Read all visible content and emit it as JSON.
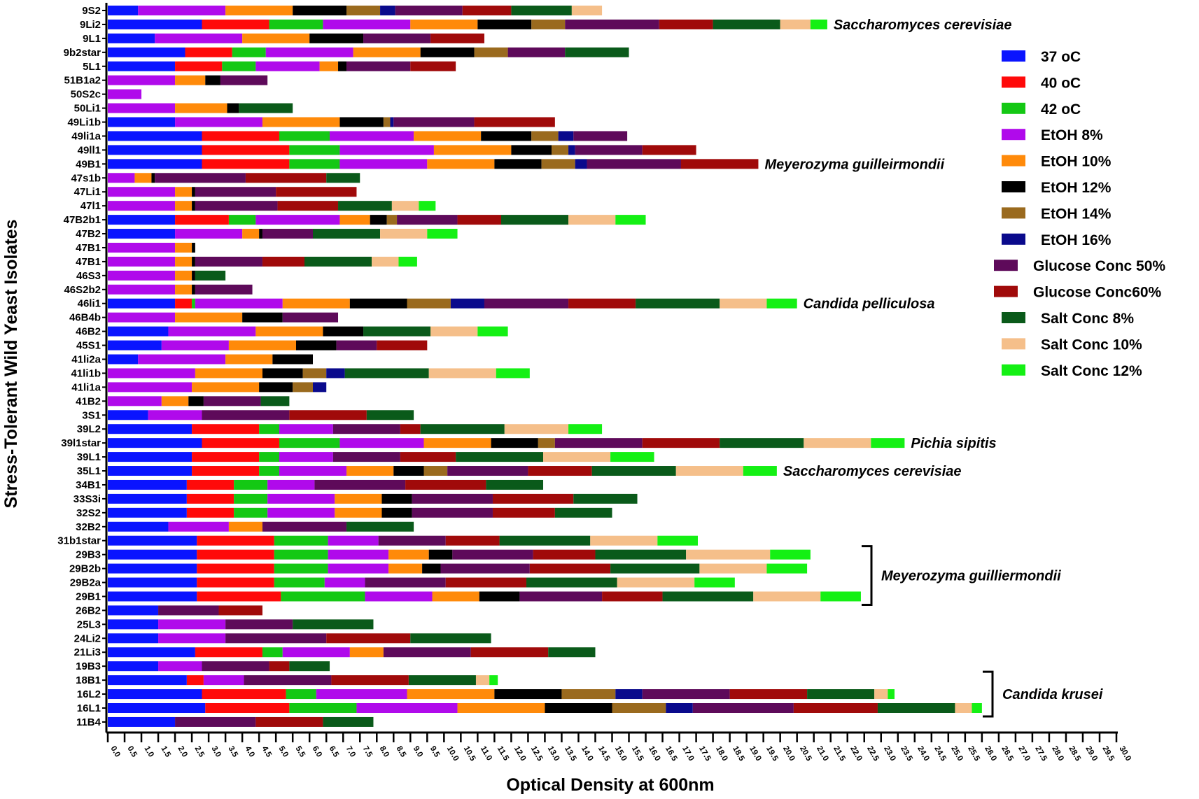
{
  "chart_data": {
    "type": "bar",
    "orientation": "horizontal",
    "stacked": true,
    "xlabel": "Optical Density at 600nm",
    "ylabel": "Stress-Tolerant Wild Yeast Isolates",
    "xlim": [
      0,
      30
    ],
    "xtick_step": 0.5,
    "grid": false,
    "legend_position": "right",
    "series": [
      {
        "name": "37 oC",
        "color": "#0a14ff"
      },
      {
        "name": "40 oC",
        "color": "#ff0a0a"
      },
      {
        "name": "42 oC",
        "color": "#14c814"
      },
      {
        "name": "EtOH 8%",
        "color": "#b00aeb"
      },
      {
        "name": "EtOH 10%",
        "color": "#ff8a0a"
      },
      {
        "name": "EtOH 12%",
        "color": "#000000"
      },
      {
        "name": "EtOH 14%",
        "color": "#9a6a1e"
      },
      {
        "name": "EtOH 16%",
        "color": "#0a0a8c"
      },
      {
        "name": "Glucose Conc 50%",
        "color": "#5e0a5a"
      },
      {
        "name": "Glucose Conc60%",
        "color": "#a00a0a"
      },
      {
        "name": "Salt Conc 8%",
        "color": "#0a5a1a"
      },
      {
        "name": "Salt Conc 10%",
        "color": "#f5bf8a"
      },
      {
        "name": "Salt Conc 12%",
        "color": "#14f014"
      }
    ],
    "rows": [
      {
        "label": "9S2",
        "values": [
          0.9,
          0,
          0,
          2.6,
          2.0,
          1.6,
          1.0,
          0.45,
          2.0,
          1.45,
          1.8,
          0.9,
          0
        ]
      },
      {
        "label": "9Li2",
        "values": [
          2.8,
          2.0,
          1.6,
          2.6,
          2.0,
          1.6,
          1.0,
          0,
          2.8,
          1.6,
          2.0,
          0.9,
          0.5
        ]
      },
      {
        "label": "9L1",
        "values": [
          1.4,
          0,
          0,
          2.6,
          2.0,
          1.6,
          0,
          0,
          2.0,
          1.6,
          0,
          0,
          0
        ]
      },
      {
        "label": "9b2star",
        "values": [
          2.3,
          1.4,
          1.0,
          2.6,
          2.0,
          1.6,
          1.0,
          0,
          1.7,
          0,
          1.9,
          0,
          0
        ]
      },
      {
        "label": "5L1",
        "values": [
          2.0,
          1.4,
          1.0,
          1.9,
          0.55,
          0.25,
          0,
          0,
          1.9,
          1.35,
          0,
          0,
          0
        ]
      },
      {
        "label": "51B1a2",
        "values": [
          0,
          0,
          0,
          2.0,
          0.9,
          0.45,
          0,
          0,
          1.4,
          0,
          0,
          0,
          0
        ]
      },
      {
        "label": "50S2c",
        "values": [
          0,
          0,
          0,
          1.0,
          0,
          0,
          0,
          0,
          0,
          0,
          0,
          0,
          0
        ]
      },
      {
        "label": "50Li1",
        "values": [
          0,
          0,
          0,
          2.0,
          1.55,
          0.35,
          0,
          0,
          0,
          0,
          1.6,
          0,
          0
        ]
      },
      {
        "label": "49Li1b",
        "values": [
          2.0,
          0,
          0,
          2.6,
          2.3,
          1.3,
          0.2,
          0.1,
          2.4,
          2.4,
          0,
          0,
          0
        ]
      },
      {
        "label": "49li1a",
        "values": [
          2.8,
          2.3,
          1.5,
          2.5,
          2.0,
          1.5,
          0.8,
          0.45,
          1.6,
          0,
          0,
          0,
          0
        ]
      },
      {
        "label": "49ll1",
        "values": [
          2.8,
          2.6,
          1.5,
          2.8,
          2.3,
          1.2,
          0.5,
          0.2,
          2.0,
          1.6,
          0,
          0,
          0
        ]
      },
      {
        "label": "49B1",
        "values": [
          2.8,
          2.6,
          1.5,
          2.6,
          2.0,
          1.4,
          1.0,
          0.35,
          2.8,
          2.3,
          0,
          0,
          0
        ]
      },
      {
        "label": "47s1b",
        "values": [
          0,
          0,
          0,
          0.8,
          0.5,
          0.1,
          0,
          0,
          2.7,
          2.4,
          1.0,
          0,
          0
        ]
      },
      {
        "label": "47Li1",
        "values": [
          0,
          0,
          0,
          2.0,
          0.5,
          0.1,
          0,
          0,
          2.4,
          2.4,
          0,
          0,
          0
        ]
      },
      {
        "label": "47l1",
        "values": [
          0,
          0,
          0,
          2.0,
          0.5,
          0.1,
          0,
          0,
          2.45,
          1.8,
          1.6,
          0.8,
          0.5
        ]
      },
      {
        "label": "47B2b1",
        "values": [
          2.0,
          1.6,
          0.8,
          2.5,
          0.9,
          0.5,
          0.3,
          0,
          1.8,
          1.3,
          2.0,
          1.4,
          0.9
        ]
      },
      {
        "label": "47B2",
        "values": [
          2.0,
          0,
          0,
          2.0,
          0.5,
          0.1,
          0,
          0,
          1.5,
          0,
          2.0,
          1.4,
          0.9
        ]
      },
      {
        "label": "47B1",
        "values": [
          0,
          0,
          0,
          2.0,
          0.5,
          0.1,
          0,
          0,
          0,
          0,
          0,
          0,
          0
        ]
      },
      {
        "label": "47B1",
        "values": [
          0,
          0,
          0,
          2.0,
          0.5,
          0.1,
          0,
          0,
          2.0,
          1.25,
          2.0,
          0.8,
          0.55
        ]
      },
      {
        "label": "46S3",
        "values": [
          0,
          0,
          0,
          2.0,
          0.5,
          0.1,
          0,
          0,
          0,
          0,
          0.9,
          0,
          0
        ]
      },
      {
        "label": "46S2b2",
        "values": [
          0,
          0,
          0,
          2.0,
          0.5,
          0.1,
          0,
          0,
          1.7,
          0,
          0,
          0,
          0
        ]
      },
      {
        "label": "46li1",
        "values": [
          2.0,
          0.5,
          0.1,
          2.6,
          2.0,
          1.7,
          1.3,
          1.0,
          2.5,
          2.0,
          2.5,
          1.4,
          0.9
        ]
      },
      {
        "label": "46B4b",
        "values": [
          0,
          0,
          0,
          2.0,
          2.0,
          1.2,
          0,
          0,
          1.65,
          0,
          0,
          0,
          0
        ]
      },
      {
        "label": "46B2",
        "values": [
          1.8,
          0,
          0,
          2.6,
          2.0,
          1.2,
          0,
          0,
          0,
          0,
          2.0,
          1.4,
          0.9
        ]
      },
      {
        "label": "45S1",
        "values": [
          1.6,
          0,
          0,
          2.0,
          2.0,
          1.2,
          0,
          0,
          1.2,
          1.5,
          0,
          0,
          0
        ]
      },
      {
        "label": "41li2a",
        "values": [
          0.9,
          0,
          0,
          2.6,
          1.4,
          1.2,
          0,
          0,
          0,
          0,
          0,
          0,
          0
        ]
      },
      {
        "label": "41li1b",
        "values": [
          0,
          0,
          0,
          2.6,
          2.0,
          1.2,
          0.7,
          0.55,
          0,
          0,
          2.5,
          2.0,
          1.0
        ]
      },
      {
        "label": "41li1a",
        "values": [
          0,
          0,
          0,
          2.5,
          2.0,
          1.0,
          0.6,
          0.4,
          0,
          0,
          0,
          0,
          0
        ]
      },
      {
        "label": "41B2",
        "values": [
          0,
          0,
          0,
          1.6,
          0.8,
          0.45,
          0,
          0,
          1.7,
          0,
          0.85,
          0,
          0
        ]
      },
      {
        "label": "3S1",
        "values": [
          1.2,
          0,
          0,
          1.6,
          0,
          0,
          0,
          0,
          2.6,
          2.3,
          1.4,
          0,
          0
        ]
      },
      {
        "label": "39L2",
        "values": [
          2.5,
          2.0,
          0.6,
          1.6,
          0,
          0,
          0,
          0,
          2.0,
          0.6,
          2.5,
          1.9,
          1.0
        ]
      },
      {
        "label": "39l1star",
        "values": [
          2.8,
          2.3,
          1.8,
          2.5,
          2.0,
          1.4,
          0.5,
          0,
          2.6,
          2.3,
          2.5,
          2.0,
          1.0
        ]
      },
      {
        "label": "39L1",
        "values": [
          2.5,
          2.0,
          0.6,
          1.6,
          0,
          0,
          0,
          0,
          2.0,
          1.65,
          2.6,
          2.0,
          1.3
        ]
      },
      {
        "label": "35L1",
        "values": [
          2.5,
          2.0,
          0.6,
          2.0,
          1.4,
          0.9,
          0.7,
          0,
          2.4,
          1.9,
          2.5,
          2.0,
          1.0
        ]
      },
      {
        "label": "34B1",
        "values": [
          2.35,
          1.4,
          1.0,
          1.4,
          0,
          0,
          0,
          0,
          2.7,
          2.4,
          1.7,
          0,
          0
        ]
      },
      {
        "label": "33S3i",
        "values": [
          2.35,
          1.4,
          1.0,
          2.0,
          1.4,
          0.9,
          0,
          0,
          2.4,
          2.4,
          1.9,
          0,
          0
        ]
      },
      {
        "label": "32S2",
        "values": [
          2.35,
          1.4,
          1.0,
          2.0,
          1.4,
          0.9,
          0,
          0,
          2.4,
          1.85,
          1.7,
          0,
          0
        ]
      },
      {
        "label": "32B2",
        "values": [
          1.8,
          0,
          0,
          1.8,
          1.0,
          0,
          0,
          0,
          2.5,
          0,
          2.0,
          0,
          0
        ]
      },
      {
        "label": "31b1star",
        "values": [
          2.65,
          2.3,
          1.6,
          1.5,
          0,
          0,
          0,
          0,
          2.0,
          1.6,
          2.7,
          2.0,
          1.2
        ]
      },
      {
        "label": "29B3",
        "values": [
          2.65,
          2.3,
          1.6,
          1.8,
          1.2,
          0.7,
          0,
          0,
          2.4,
          1.85,
          2.7,
          2.5,
          1.2
        ]
      },
      {
        "label": "29B2b",
        "values": [
          2.65,
          2.3,
          1.6,
          1.8,
          1.0,
          0.55,
          0,
          0,
          2.65,
          2.4,
          2.65,
          2.0,
          1.2
        ]
      },
      {
        "label": "29B2a",
        "values": [
          2.65,
          2.3,
          1.5,
          1.2,
          0,
          0,
          0,
          0,
          2.4,
          2.4,
          2.7,
          2.3,
          1.2
        ]
      },
      {
        "label": "29B1",
        "values": [
          2.65,
          2.5,
          2.5,
          2.0,
          1.4,
          1.2,
          0,
          0,
          2.45,
          1.8,
          2.7,
          2.0,
          1.2
        ]
      },
      {
        "label": "26B2",
        "values": [
          1.5,
          0,
          0,
          0,
          0,
          0,
          0,
          0,
          1.8,
          1.3,
          0,
          0,
          0
        ]
      },
      {
        "label": "25L3",
        "values": [
          1.5,
          0,
          0,
          2.0,
          0,
          0,
          0,
          0,
          2.0,
          0,
          2.4,
          0,
          0
        ]
      },
      {
        "label": "24Li2",
        "values": [
          1.5,
          0,
          0,
          2.0,
          0,
          0,
          0,
          0,
          3.0,
          2.5,
          2.4,
          0,
          0
        ]
      },
      {
        "label": "21Li3",
        "values": [
          2.6,
          2.0,
          0.6,
          2.0,
          1.0,
          0,
          0,
          0,
          2.6,
          2.3,
          1.4,
          0,
          0
        ]
      },
      {
        "label": "19B3",
        "values": [
          1.5,
          0,
          0,
          1.3,
          0,
          0,
          0,
          0,
          2.0,
          0.6,
          1.2,
          0,
          0
        ]
      },
      {
        "label": "18B1",
        "values": [
          2.35,
          0.5,
          0,
          1.2,
          0,
          0,
          0,
          0,
          2.6,
          2.3,
          2.0,
          0.4,
          0.25
        ]
      },
      {
        "label": "16L2",
        "values": [
          2.8,
          2.5,
          0.9,
          2.7,
          2.6,
          2.0,
          1.6,
          0.8,
          2.6,
          2.3,
          2.0,
          0.4,
          0.2
        ]
      },
      {
        "label": "16L1",
        "values": [
          2.9,
          2.5,
          2.0,
          3.0,
          2.6,
          2.0,
          1.6,
          0.8,
          3.0,
          2.5,
          2.3,
          0.5,
          0.3
        ]
      },
      {
        "label": "11B4",
        "values": [
          2.0,
          0,
          0,
          0,
          0,
          0,
          0,
          0,
          2.4,
          2.0,
          1.5,
          0,
          0
        ]
      }
    ],
    "annotations": [
      {
        "text": "Saccharomyces cerevisiae",
        "row": "9Li2"
      },
      {
        "text": "Meyerozyma guilleirmondii",
        "row": "49B1"
      },
      {
        "text": "Candida pelliculosa",
        "row": "46li1"
      },
      {
        "text": "Pichia sipitis",
        "row": "39l1star"
      },
      {
        "text": "Saccharomyces cerevisiae",
        "row": "35L1"
      }
    ],
    "brackets": [
      {
        "text": "Meyerozyma guilliermondii",
        "from": "29B3",
        "to": "29B1"
      },
      {
        "text": "Candida krusei",
        "from": "18B1",
        "to": "16L1"
      }
    ]
  }
}
